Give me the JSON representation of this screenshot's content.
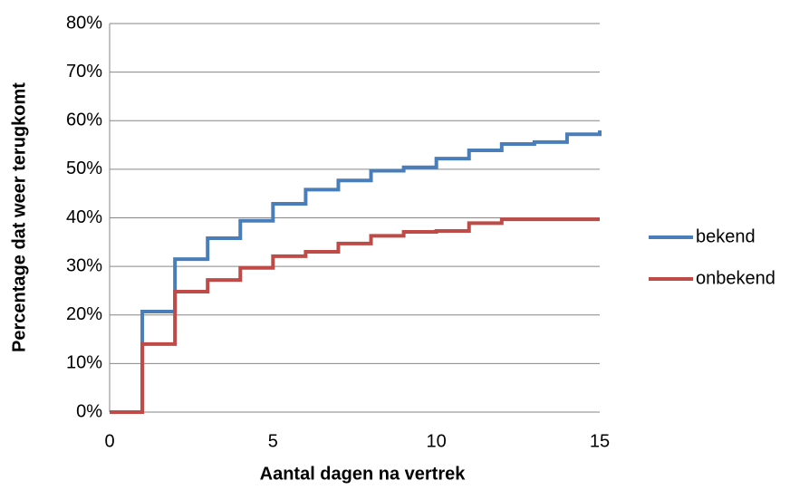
{
  "chart_data": {
    "type": "step",
    "x_label": "Aantal dagen na vertrek",
    "y_label": "Percentage dat weer terugkomt",
    "x": [
      0,
      1,
      2,
      3,
      4,
      5,
      6,
      7,
      8,
      9,
      10,
      11,
      12,
      13,
      14,
      15
    ],
    "series": [
      {
        "name": "bekend",
        "color": "#4a7ebb",
        "values": [
          0,
          20.7,
          31.5,
          35.8,
          39.4,
          42.9,
          45.8,
          47.7,
          49.7,
          50.4,
          52.2,
          53.9,
          55.2,
          55.6,
          57.2,
          58
        ]
      },
      {
        "name": "onbekend",
        "color": "#be4b48",
        "values": [
          0,
          14,
          24.8,
          27.2,
          29.7,
          32.1,
          33,
          34.7,
          36.3,
          37.1,
          37.3,
          38.9,
          39.7,
          39.7,
          39.7,
          39.7
        ]
      }
    ],
    "xlim": [
      0,
      15
    ],
    "xticks": [
      0,
      5,
      10,
      15
    ],
    "ylim": [
      0,
      80
    ],
    "yticks": [
      {
        "value": 0,
        "label": "0%"
      },
      {
        "value": 10,
        "label": "10%"
      },
      {
        "value": 20,
        "label": "20%"
      },
      {
        "value": 30,
        "label": "30%"
      },
      {
        "value": 40,
        "label": "40%"
      },
      {
        "value": 50,
        "label": "50%"
      },
      {
        "value": 60,
        "label": "60%"
      },
      {
        "value": 70,
        "label": "70%"
      },
      {
        "value": 80,
        "label": "80%"
      }
    ],
    "grid": true,
    "legend": "right"
  }
}
